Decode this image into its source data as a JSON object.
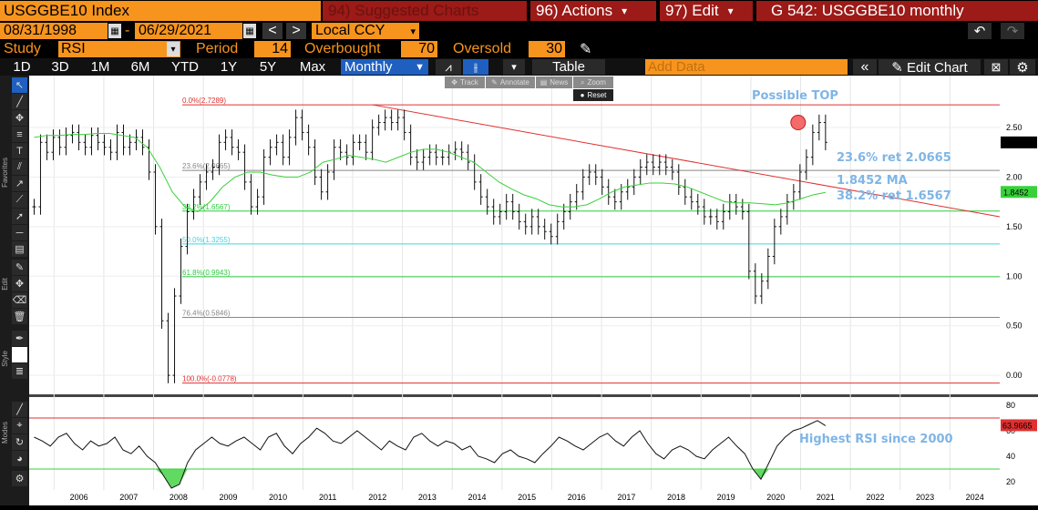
{
  "header": {
    "ticker": "USGGBE10 Index",
    "suggested": "94) Suggested Charts",
    "actions": "96) Actions",
    "actions_arrow": "▾",
    "edit": "97) Edit",
    "edit_arrow": "▾",
    "title": "G 542: USGGBE10 monthly"
  },
  "row2": {
    "start_date": "08/31/1998",
    "dash": "-",
    "end_date": "06/29/2021",
    "prev": "<",
    "next": ">",
    "currency": "Local CCY",
    "currency_arrow": "▾",
    "undo": "↶",
    "redo": "↷"
  },
  "row3": {
    "study_label": "Study",
    "study_value": "RSI",
    "study_arrow": "▾",
    "period_label": "Period",
    "period_value": "14",
    "overbought_label": "Overbought",
    "overbought_value": "70",
    "oversold_label": "Oversold",
    "oversold_value": "30",
    "pen": "✎"
  },
  "row4": {
    "ranges": [
      "1D",
      "3D",
      "1M",
      "6M",
      "YTD",
      "1Y",
      "5Y",
      "Max"
    ],
    "freq": "Monthly",
    "freq_arrow": "▼",
    "line_icon": "⩘",
    "bar_icon": "⫲",
    "more_arrow": "▾",
    "table": "Table",
    "add_data": "Add Data",
    "collapse": "«",
    "edit_chart": "✎ Edit Chart",
    "edit_chart_icon": "⊠",
    "settings": "⚙"
  },
  "toolbar": {
    "track": "Track",
    "annotate": "Annotate",
    "news": "News",
    "zoom": "Zoom",
    "reset": "Reset"
  },
  "sidebar": {
    "favorites": "Favorites",
    "edit": "Edit",
    "style": "Style",
    "modes": "Modes"
  },
  "annotations": {
    "top": "Possible TOP",
    "ret236": "23.6% ret 2.0665",
    "ma": "1.8452 MA",
    "ret382": "38.2% ret 1.6567",
    "rsi_note": "Highest RSI since 2000"
  },
  "fib_labels": [
    {
      "text": "0.0%(2.7289)",
      "value": 2.7289,
      "color": "#e03030"
    },
    {
      "text": "23.6%(2.0665)",
      "value": 2.0665,
      "color": "#888888"
    },
    {
      "text": "38.2%(1.6567)",
      "value": 1.6567,
      "color": "#2ecc40"
    },
    {
      "text": "50.0%(1.3255)",
      "value": 1.3255,
      "color": "#3fd6e0"
    },
    {
      "text": "61.8%(0.9943)",
      "value": 0.9943,
      "color": "#2ecc40"
    },
    {
      "text": "76.4%(0.5846)",
      "value": 0.5846,
      "color": "#888888"
    },
    {
      "text": "100.0%(-0.0778)",
      "value": -0.0778,
      "color": "#e03030"
    }
  ],
  "price_badges": {
    "last": "2.3451",
    "ma": "1.8452",
    "rsi": "63.9665"
  },
  "colors": {
    "orange": "#f7941d",
    "red": "#9c1a17",
    "accent_blue": "#1f5fbf",
    "ma_green": "#39d13a",
    "annotation": "#7fb5e6"
  },
  "chart_data": {
    "type": "line",
    "main": {
      "y_ticks": [
        "2.50",
        "2.00",
        "1.50",
        "1.00",
        "0.50",
        "0.00"
      ],
      "ylim": [
        -0.1,
        2.95
      ],
      "x_labels": [
        "2006",
        "2007",
        "2008",
        "2009",
        "2010",
        "2011",
        "2012",
        "2013",
        "2014",
        "2015",
        "2016",
        "2017",
        "2018",
        "2019",
        "2020",
        "2021",
        "2022",
        "2023",
        "2024"
      ],
      "price": [
        1.7,
        2.35,
        2.25,
        2.4,
        2.3,
        2.42,
        2.45,
        2.35,
        2.3,
        2.42,
        2.35,
        2.3,
        2.25,
        2.45,
        2.3,
        2.35,
        2.4,
        2.3,
        2.05,
        1.5,
        0.55,
        0.0,
        0.8,
        1.3,
        1.65,
        1.8,
        1.95,
        2.05,
        2.1,
        2.35,
        2.4,
        2.3,
        2.25,
        1.95,
        1.7,
        1.8,
        2.2,
        2.3,
        2.35,
        2.2,
        2.4,
        2.6,
        2.45,
        2.3,
        2.0,
        1.85,
        2.05,
        2.3,
        2.25,
        2.2,
        2.35,
        2.35,
        2.25,
        2.5,
        2.55,
        2.6,
        2.55,
        2.6,
        2.45,
        2.2,
        2.15,
        2.2,
        2.25,
        2.2,
        2.2,
        2.25,
        2.28,
        2.25,
        2.15,
        1.95,
        1.8,
        1.7,
        1.6,
        1.65,
        1.75,
        1.65,
        1.55,
        1.5,
        1.6,
        1.5,
        1.45,
        1.4,
        1.55,
        1.65,
        1.75,
        1.85,
        2.0,
        2.05,
        2.0,
        1.9,
        1.8,
        1.75,
        1.85,
        1.9,
        2.0,
        2.1,
        2.15,
        2.1,
        2.15,
        2.1,
        2.05,
        1.9,
        1.8,
        1.75,
        1.7,
        1.6,
        1.6,
        1.55,
        1.65,
        1.75,
        1.7,
        1.65,
        1.05,
        0.8,
        0.95,
        1.2,
        1.5,
        1.6,
        1.75,
        1.85,
        2.05,
        2.2,
        2.45,
        2.55,
        2.35
      ],
      "ma": [
        2.4,
        2.42,
        2.42,
        2.43,
        2.43,
        2.44,
        2.44,
        2.42,
        2.4,
        2.3,
        2.1,
        1.85,
        1.7,
        1.65,
        1.75,
        1.9,
        2.0,
        2.05,
        2.05,
        2.02,
        2.0,
        2.0,
        2.05,
        2.15,
        2.18,
        2.22,
        2.2,
        2.18,
        2.15,
        2.2,
        2.25,
        2.28,
        2.28,
        2.25,
        2.2,
        2.15,
        2.05,
        1.95,
        1.88,
        1.82,
        1.78,
        1.72,
        1.7,
        1.7,
        1.72,
        1.78,
        1.85,
        1.9,
        1.92,
        1.94,
        1.94,
        1.93,
        1.9,
        1.85,
        1.8,
        1.75,
        1.74,
        1.74,
        1.73,
        1.72,
        1.74,
        1.78,
        1.82,
        1.8452
      ],
      "trendline": {
        "from": [
          2012.4,
          2.7289
        ],
        "to": [
          2025.0,
          1.6
        ]
      },
      "top_marker": {
        "x": 2020.95,
        "y": 2.55
      }
    },
    "rsi": {
      "y_ticks": [
        "80",
        "60",
        "40",
        "20"
      ],
      "ylim": [
        15,
        85
      ],
      "overbought": 70,
      "oversold": 30,
      "values": [
        55,
        52,
        48,
        55,
        58,
        50,
        45,
        52,
        48,
        50,
        55,
        45,
        42,
        48,
        40,
        35,
        25,
        15,
        18,
        35,
        45,
        50,
        55,
        50,
        48,
        52,
        55,
        50,
        45,
        55,
        58,
        48,
        42,
        50,
        55,
        62,
        58,
        52,
        50,
        55,
        60,
        55,
        50,
        45,
        52,
        48,
        45,
        55,
        58,
        52,
        48,
        52,
        50,
        45,
        48,
        40,
        38,
        35,
        42,
        45,
        40,
        38,
        35,
        42,
        48,
        55,
        52,
        48,
        45,
        50,
        55,
        58,
        52,
        48,
        55,
        60,
        50,
        42,
        38,
        45,
        48,
        45,
        40,
        38,
        45,
        50,
        55,
        48,
        42,
        30,
        22,
        35,
        48,
        55,
        60,
        62,
        65,
        68,
        64
      ]
    }
  }
}
